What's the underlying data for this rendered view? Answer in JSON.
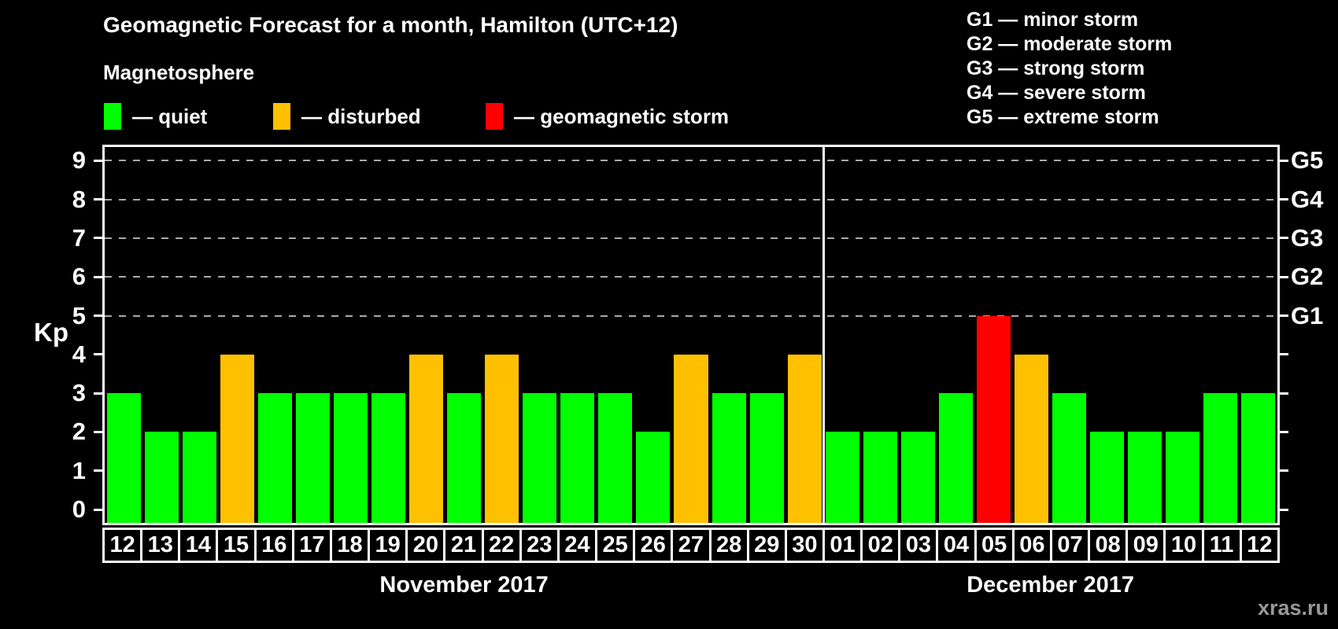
{
  "title": "Geomagnetic Forecast for a month, Hamilton (UTC+12)",
  "subtitle": "Magnetosphere",
  "legend": {
    "items": [
      {
        "name": "quiet",
        "label": "— quiet",
        "color": "#00ff00"
      },
      {
        "name": "disturbed",
        "label": "— disturbed",
        "color": "#ffc000"
      },
      {
        "name": "storm",
        "label": "— geomagnetic storm",
        "color": "#ff0000"
      }
    ]
  },
  "g_legend": {
    "items": [
      "G1 — minor storm",
      "G2 — moderate storm",
      "G3 — strong storm",
      "G4 — severe storm",
      "G5 — extreme storm"
    ]
  },
  "watermark": "xras.ru",
  "chart_data": {
    "type": "bar",
    "title": "Geomagnetic Forecast for a month, Hamilton (UTC+12)",
    "ylabel": "Kp",
    "ylim": [
      0,
      9
    ],
    "y_ticks": [
      0,
      1,
      2,
      3,
      4,
      5,
      6,
      7,
      8,
      9
    ],
    "gridlines_at_kp": [
      5,
      6,
      7,
      8,
      9
    ],
    "grid_style": "dashed",
    "legend_position": "top",
    "right_axis_labels": [
      {
        "kp": 5,
        "label": "G1"
      },
      {
        "kp": 6,
        "label": "G2"
      },
      {
        "kp": 7,
        "label": "G3"
      },
      {
        "kp": 8,
        "label": "G4"
      },
      {
        "kp": 9,
        "label": "G5"
      }
    ],
    "status_colors": {
      "quiet": "#00ff00",
      "disturbed": "#ffc000",
      "storm": "#ff0000"
    },
    "months": [
      {
        "label": "November 2017",
        "points": [
          {
            "day": "12",
            "kp": 3,
            "status": "quiet"
          },
          {
            "day": "13",
            "kp": 2,
            "status": "quiet"
          },
          {
            "day": "14",
            "kp": 2,
            "status": "quiet"
          },
          {
            "day": "15",
            "kp": 4,
            "status": "disturbed"
          },
          {
            "day": "16",
            "kp": 3,
            "status": "quiet"
          },
          {
            "day": "17",
            "kp": 3,
            "status": "quiet"
          },
          {
            "day": "18",
            "kp": 3,
            "status": "quiet"
          },
          {
            "day": "19",
            "kp": 3,
            "status": "quiet"
          },
          {
            "day": "20",
            "kp": 4,
            "status": "disturbed"
          },
          {
            "day": "21",
            "kp": 3,
            "status": "quiet"
          },
          {
            "day": "22",
            "kp": 4,
            "status": "disturbed"
          },
          {
            "day": "23",
            "kp": 3,
            "status": "quiet"
          },
          {
            "day": "24",
            "kp": 3,
            "status": "quiet"
          },
          {
            "day": "25",
            "kp": 3,
            "status": "quiet"
          },
          {
            "day": "26",
            "kp": 2,
            "status": "quiet"
          },
          {
            "day": "27",
            "kp": 4,
            "status": "disturbed"
          },
          {
            "day": "28",
            "kp": 3,
            "status": "quiet"
          },
          {
            "day": "29",
            "kp": 3,
            "status": "quiet"
          },
          {
            "day": "30",
            "kp": 4,
            "status": "disturbed"
          }
        ]
      },
      {
        "label": "December 2017",
        "points": [
          {
            "day": "01",
            "kp": 2,
            "status": "quiet"
          },
          {
            "day": "02",
            "kp": 2,
            "status": "quiet"
          },
          {
            "day": "03",
            "kp": 2,
            "status": "quiet"
          },
          {
            "day": "04",
            "kp": 3,
            "status": "quiet"
          },
          {
            "day": "05",
            "kp": 5,
            "status": "storm"
          },
          {
            "day": "06",
            "kp": 4,
            "status": "disturbed"
          },
          {
            "day": "07",
            "kp": 3,
            "status": "quiet"
          },
          {
            "day": "08",
            "kp": 2,
            "status": "quiet"
          },
          {
            "day": "09",
            "kp": 2,
            "status": "quiet"
          },
          {
            "day": "10",
            "kp": 2,
            "status": "quiet"
          },
          {
            "day": "11",
            "kp": 3,
            "status": "quiet"
          },
          {
            "day": "12",
            "kp": 3,
            "status": "quiet"
          }
        ]
      }
    ]
  }
}
